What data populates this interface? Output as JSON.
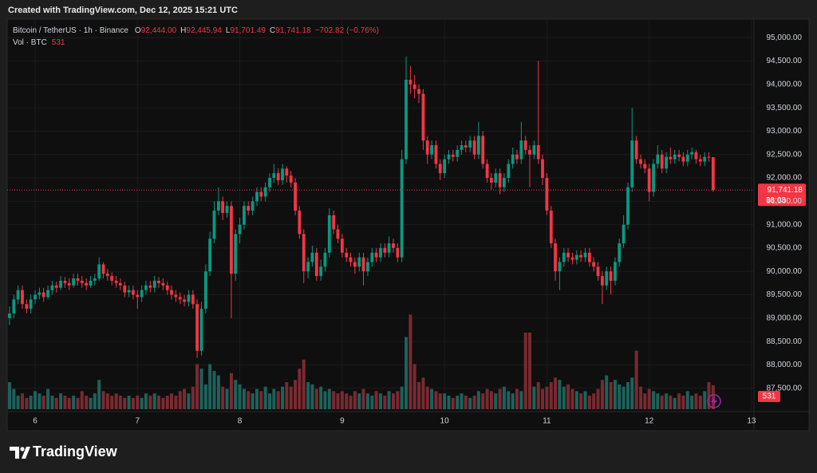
{
  "header": {
    "credit": "Created with TradingView.com, Dec 12, 2025 15:21 UTC"
  },
  "chart_data": {
    "type": "candlestick",
    "symbol": "Bitcoin / TetherUS · 1h · Binance",
    "legend": {
      "open_key": "O",
      "open": {
        "value": 92444.0,
        "label": "92,444.00"
      },
      "high_key": "H",
      "high": {
        "value": 92445.94,
        "label": "92,445.94"
      },
      "low_key": "L",
      "low": {
        "value": 91701.49,
        "label": "91,701.49"
      },
      "close_key": "C",
      "close": {
        "value": 91741.18,
        "label": "91,741.18"
      },
      "change": {
        "value": -702.82,
        "label": "−702.82"
      },
      "change_pct": {
        "value": -0.76,
        "label": "(−0.76%)"
      }
    },
    "volume_title": "Vol · BTC",
    "x": [
      5.75,
      5.792,
      5.833,
      5.875,
      5.917,
      5.958,
      6,
      6.042,
      6.083,
      6.125,
      6.167,
      6.208,
      6.25,
      6.292,
      6.333,
      6.375,
      6.417,
      6.458,
      6.5,
      6.542,
      6.583,
      6.625,
      6.667,
      6.708,
      6.75,
      6.792,
      6.833,
      6.875,
      6.917,
      6.958,
      7,
      7.042,
      7.083,
      7.125,
      7.167,
      7.208,
      7.25,
      7.292,
      7.333,
      7.375,
      7.417,
      7.458,
      7.5,
      7.542,
      7.583,
      7.625,
      7.667,
      7.708,
      7.75,
      7.792,
      7.833,
      7.875,
      7.917,
      7.958,
      8,
      8.042,
      8.083,
      8.125,
      8.167,
      8.208,
      8.25,
      8.292,
      8.333,
      8.375,
      8.417,
      8.458,
      8.5,
      8.542,
      8.583,
      8.625,
      8.667,
      8.708,
      8.75,
      8.792,
      8.833,
      8.875,
      8.917,
      8.958,
      9,
      9.042,
      9.083,
      9.125,
      9.167,
      9.208,
      9.25,
      9.292,
      9.333,
      9.375,
      9.417,
      9.458,
      9.5,
      9.542,
      9.583,
      9.625,
      9.667,
      9.708,
      9.75,
      9.792,
      9.833,
      9.875,
      9.917,
      9.958,
      10,
      10.042,
      10.083,
      10.125,
      10.167,
      10.208,
      10.25,
      10.292,
      10.333,
      10.375,
      10.417,
      10.458,
      10.5,
      10.542,
      10.583,
      10.625,
      10.667,
      10.708,
      10.75,
      10.792,
      10.833,
      10.875,
      10.917,
      10.958,
      11,
      11.042,
      11.083,
      11.125,
      11.167,
      11.208,
      11.25,
      11.292,
      11.333,
      11.375,
      11.417,
      11.458,
      11.5,
      11.542,
      11.583,
      11.625,
      11.667,
      11.708,
      11.75,
      11.792,
      11.833,
      11.875,
      11.917,
      11.958,
      12,
      12.042,
      12.083,
      12.125,
      12.167,
      12.208,
      12.25,
      12.292,
      12.333,
      12.375,
      12.417,
      12.458,
      12.5,
      12.542,
      12.583,
      12.625
    ],
    "open": [
      89000,
      89100,
      89400,
      89600,
      89300,
      89200,
      89400,
      89500,
      89550,
      89450,
      89600,
      89700,
      89650,
      89800,
      89750,
      89700,
      89850,
      89800,
      89750,
      89700,
      89800,
      89850,
      90150,
      89950,
      89900,
      89800,
      89750,
      89700,
      89550,
      89600,
      89500,
      89450,
      89600,
      89700,
      89650,
      89800,
      89750,
      89700,
      89600,
      89500,
      89450,
      89400,
      89350,
      89500,
      89300,
      88300,
      89200,
      90000,
      90700,
      91300,
      91500,
      91250,
      91400,
      89950,
      90800,
      91000,
      91400,
      91300,
      91500,
      91700,
      91600,
      91800,
      92000,
      92100,
      91950,
      92200,
      92050,
      91900,
      91300,
      90800,
      90000,
      90200,
      90400,
      89900,
      90100,
      90400,
      91200,
      90900,
      90700,
      90400,
      90300,
      90200,
      90100,
      90300,
      90000,
      90200,
      90400,
      90300,
      90500,
      90400,
      90600,
      90500,
      90300,
      92400,
      94100,
      94000,
      93900,
      93800,
      92800,
      92500,
      92700,
      92300,
      92100,
      92400,
      92500,
      92450,
      92600,
      92700,
      92650,
      92800,
      92500,
      92900,
      92300,
      92000,
      91900,
      92100,
      91800,
      92000,
      92300,
      92500,
      92400,
      92800,
      92600,
      92500,
      92700,
      92400,
      92000,
      91300,
      90600,
      90000,
      90200,
      90400,
      90300,
      90250,
      90350,
      90300,
      90400,
      90200,
      90100,
      89900,
      89700,
      90000,
      89800,
      90200,
      90600,
      91000,
      91800,
      92800,
      92400,
      92300,
      92200,
      91700,
      92300,
      92500,
      92200,
      92450,
      92400,
      92500,
      92450,
      92350,
      92500,
      92550,
      92400,
      92350,
      92450,
      92444
    ],
    "high": [
      89250,
      89500,
      89700,
      89700,
      89400,
      89500,
      89600,
      89650,
      89650,
      89700,
      89800,
      89780,
      89900,
      89880,
      89850,
      89950,
      89950,
      89900,
      89850,
      89900,
      89950,
      90300,
      90200,
      90050,
      89980,
      89900,
      89850,
      89780,
      89700,
      89700,
      89600,
      89700,
      89800,
      89800,
      89900,
      89880,
      89850,
      89780,
      89700,
      89600,
      89550,
      89500,
      89600,
      89600,
      89400,
      89350,
      90150,
      90850,
      91500,
      91800,
      91600,
      91500,
      91500,
      90900,
      91150,
      91500,
      91500,
      91600,
      91800,
      91800,
      91900,
      92100,
      92300,
      92200,
      92300,
      92250,
      92150,
      92000,
      91400,
      90900,
      90300,
      90550,
      90500,
      90250,
      90500,
      91350,
      91300,
      91000,
      90800,
      90500,
      90400,
      90300,
      90400,
      90400,
      90300,
      90500,
      90500,
      90600,
      90600,
      90750,
      90700,
      90600,
      92600,
      94600,
      94400,
      94200,
      94000,
      93900,
      92900,
      92800,
      92800,
      92400,
      92500,
      92600,
      92600,
      92700,
      92800,
      92800,
      92900,
      92900,
      93200,
      93000,
      92400,
      92100,
      92200,
      92200,
      92100,
      92400,
      92650,
      92600,
      93200,
      92900,
      92700,
      92800,
      94500,
      92500,
      92100,
      91400,
      90700,
      90300,
      90500,
      90500,
      90400,
      90450,
      90450,
      90500,
      90500,
      90300,
      90200,
      90000,
      90100,
      90100,
      90300,
      90700,
      91200,
      91900,
      93500,
      92900,
      92500,
      92400,
      92300,
      92400,
      92700,
      92600,
      92550,
      92650,
      92600,
      92600,
      92550,
      92600,
      92650,
      92600,
      92500,
      92550,
      92550,
      92445.94
    ],
    "low": [
      88850,
      89000,
      89300,
      89200,
      89100,
      89100,
      89300,
      89400,
      89350,
      89400,
      89500,
      89550,
      89600,
      89650,
      89600,
      89650,
      89700,
      89650,
      89600,
      89650,
      89700,
      89800,
      89850,
      89800,
      89700,
      89650,
      89600,
      89450,
      89450,
      89400,
      89200,
      89350,
      89500,
      89550,
      89550,
      89650,
      89600,
      89500,
      89400,
      89350,
      89300,
      89250,
      89250,
      89200,
      88150,
      88200,
      89100,
      89900,
      90600,
      91200,
      91100,
      91150,
      89000,
      89800,
      90600,
      90900,
      91200,
      91200,
      91400,
      91500,
      91500,
      91700,
      91900,
      91850,
      91850,
      91900,
      91800,
      91200,
      90700,
      89750,
      89850,
      90100,
      89800,
      89800,
      90000,
      90300,
      90800,
      90600,
      90300,
      90200,
      90100,
      89950,
      90000,
      89700,
      89900,
      90100,
      90200,
      90200,
      90300,
      90300,
      90400,
      90200,
      90200,
      92300,
      93800,
      93700,
      93600,
      92600,
      92300,
      92400,
      92200,
      91950,
      92000,
      92300,
      92350,
      92350,
      92500,
      92550,
      92550,
      92400,
      92400,
      92200,
      91900,
      91750,
      91800,
      91650,
      91700,
      91900,
      92200,
      92300,
      92300,
      92500,
      91800,
      92400,
      92300,
      91850,
      91200,
      90500,
      89800,
      89600,
      90100,
      90200,
      90150,
      90150,
      90200,
      90200,
      90100,
      90000,
      89800,
      89300,
      89600,
      89500,
      89700,
      90100,
      90500,
      90900,
      91700,
      92300,
      92200,
      92100,
      91500,
      91600,
      92200,
      92100,
      92100,
      92300,
      92300,
      92350,
      92250,
      92250,
      92400,
      92300,
      92250,
      92250,
      92350,
      91701.49
    ],
    "close": [
      89100,
      89400,
      89600,
      89300,
      89200,
      89400,
      89500,
      89550,
      89450,
      89600,
      89700,
      89650,
      89800,
      89750,
      89700,
      89850,
      89800,
      89750,
      89700,
      89800,
      89850,
      90150,
      89950,
      89900,
      89800,
      89750,
      89700,
      89550,
      89600,
      89500,
      89450,
      89600,
      89700,
      89650,
      89800,
      89750,
      89700,
      89600,
      89500,
      89450,
      89400,
      89350,
      89500,
      89300,
      88300,
      89200,
      90000,
      90700,
      91300,
      91500,
      91250,
      91400,
      89950,
      90800,
      91000,
      91400,
      91300,
      91500,
      91700,
      91600,
      91800,
      92000,
      92100,
      91950,
      92200,
      92050,
      91900,
      91300,
      90800,
      90000,
      90200,
      90400,
      89900,
      90100,
      90400,
      91200,
      90900,
      90700,
      90400,
      90300,
      90200,
      90100,
      90300,
      90000,
      90200,
      90400,
      90300,
      90500,
      90400,
      90600,
      90500,
      90300,
      92400,
      94100,
      94000,
      93900,
      93800,
      92800,
      92500,
      92700,
      92300,
      92100,
      92400,
      92500,
      92450,
      92600,
      92700,
      92650,
      92800,
      92500,
      92900,
      92300,
      92000,
      91900,
      92100,
      91800,
      92000,
      92300,
      92500,
      92400,
      92800,
      92600,
      92500,
      92700,
      92400,
      92000,
      91300,
      90600,
      90000,
      90200,
      90400,
      90300,
      90250,
      90350,
      90300,
      90400,
      90200,
      90100,
      89900,
      89700,
      90000,
      89800,
      90200,
      90600,
      91000,
      91800,
      92800,
      92400,
      92300,
      92200,
      91700,
      92300,
      92500,
      92200,
      92450,
      92400,
      92500,
      92450,
      92350,
      92500,
      92550,
      92400,
      92350,
      92450,
      92444,
      91741.18
    ],
    "volume": [
      600,
      450,
      300,
      350,
      250,
      300,
      400,
      350,
      300,
      450,
      300,
      250,
      350,
      300,
      250,
      300,
      250,
      400,
      300,
      250,
      350,
      650,
      400,
      350,
      300,
      350,
      300,
      250,
      300,
      250,
      300,
      250,
      350,
      300,
      350,
      300,
      250,
      300,
      350,
      300,
      400,
      450,
      350,
      500,
      1000,
      900,
      550,
      1000,
      850,
      750,
      500,
      450,
      800,
      650,
      550,
      450,
      400,
      350,
      450,
      400,
      500,
      350,
      450,
      400,
      500,
      600,
      500,
      650,
      900,
      1100,
      600,
      550,
      450,
      500,
      400,
      450,
      400,
      350,
      400,
      350,
      300,
      400,
      350,
      450,
      350,
      300,
      400,
      350,
      300,
      400,
      350,
      400,
      500,
      1600,
      2100,
      1000,
      600,
      700,
      500,
      450,
      400,
      350,
      350,
      300,
      250,
      300,
      350,
      300,
      250,
      300,
      400,
      350,
      450,
      400,
      350,
      450,
      500,
      400,
      350,
      450,
      400,
      1700,
      1700,
      500,
      600,
      450,
      500,
      600,
      700,
      650,
      500,
      550,
      450,
      400,
      350,
      400,
      300,
      350,
      450,
      650,
      750,
      600,
      650,
      550,
      500,
      600,
      700,
      1300,
      500,
      350,
      450,
      400,
      350,
      300,
      350,
      300,
      250,
      350,
      300,
      400,
      300,
      350,
      300,
      400,
      600,
      531
    ],
    "up_color": "#089981",
    "down_color": "#f23645",
    "volume_up_color": "#1d625b",
    "volume_down_color": "#7a2a31",
    "xlim": [
      5.727,
      13.016
    ],
    "xticks": [
      6,
      7,
      8,
      9,
      10,
      11,
      12,
      13
    ],
    "ylim": [
      87000,
      95380
    ],
    "yticks": [
      {
        "value": 87500,
        "label": "87,500.00"
      },
      {
        "value": 88000,
        "label": "88,000.00"
      },
      {
        "value": 88500,
        "label": "88,500.00"
      },
      {
        "value": 89000,
        "label": "89,000.00"
      },
      {
        "value": 89500,
        "label": "89,500.00"
      },
      {
        "value": 90000,
        "label": "90,000.00"
      },
      {
        "value": 90500,
        "label": "90,500.00"
      },
      {
        "value": 91000,
        "label": "91,000.00"
      },
      {
        "value": 91500,
        "label": "91,500.00"
      },
      {
        "value": 92000,
        "label": "92,000.00"
      },
      {
        "value": 92500,
        "label": "92,500.00"
      },
      {
        "value": 93000,
        "label": "93,000.00"
      },
      {
        "value": 93500,
        "label": "93,500.00"
      },
      {
        "value": 94000,
        "label": "94,000.00"
      },
      {
        "value": 94500,
        "label": "94,500.00"
      },
      {
        "value": 95000,
        "label": "95,000.00"
      }
    ],
    "volume_lim": [
      0,
      4000
    ],
    "grid": true,
    "last_price": {
      "value": 91741.18,
      "label": "91,741.18"
    },
    "countdown": "38:03"
  },
  "footer": {
    "logo": "TradingView"
  }
}
